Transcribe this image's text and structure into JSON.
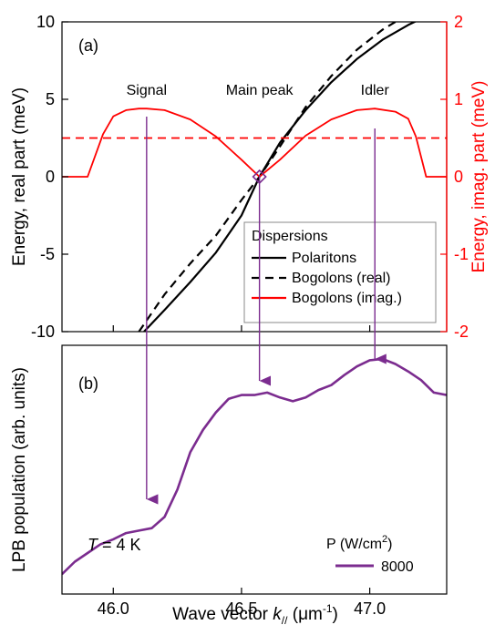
{
  "chart_data": [
    {
      "panel": "(a)",
      "type": "line",
      "xlim": [
        45.8,
        47.3
      ],
      "ylim": [
        -10,
        10
      ],
      "y2lim": [
        -2,
        2
      ],
      "ylabel": "Energy, real part (meV)",
      "y2label": "Energy, imag. part (meV)",
      "yticks": [
        -10,
        -5,
        0,
        5,
        10
      ],
      "y2ticks": [
        -2,
        -1,
        0,
        1,
        2
      ],
      "annotations": [
        "Signal",
        "Main peak",
        "Idler"
      ],
      "legend": {
        "title": "Dispersions",
        "placement": "bottom-right",
        "entries": [
          "Polaritons",
          "Bogolons (real)",
          "Bogolons (imag.)"
        ]
      },
      "series": [
        {
          "name": "Polaritons",
          "axis": "left",
          "color": "#000000",
          "style": "solid",
          "x": [
            46.12,
            46.2,
            46.3,
            46.4,
            46.5,
            46.57,
            46.65,
            46.75,
            46.85,
            46.95,
            47.05,
            47.15,
            47.2
          ],
          "y": [
            -10,
            -8.6,
            -6.8,
            -4.9,
            -2.5,
            0,
            2.2,
            4.3,
            6.1,
            7.6,
            8.85,
            9.8,
            10.2
          ]
        },
        {
          "name": "Bogolons (real)",
          "axis": "left",
          "color": "#000000",
          "style": "dashed",
          "x": [
            46.1,
            46.2,
            46.3,
            46.4,
            46.5,
            46.57,
            46.65,
            46.75,
            46.85,
            46.95,
            47.05,
            47.12
          ],
          "y": [
            -10,
            -7.6,
            -5.6,
            -3.8,
            -1.5,
            0,
            1.95,
            4.5,
            6.5,
            8.2,
            9.5,
            10.2
          ]
        },
        {
          "name": "Bogolons (imag.)",
          "axis": "right",
          "color": "#ff0000",
          "style": "solid",
          "x": [
            45.8,
            45.9,
            45.96,
            46.0,
            46.05,
            46.1,
            46.13,
            46.2,
            46.3,
            46.4,
            46.5,
            46.57,
            46.65,
            46.75,
            46.85,
            46.95,
            47.02,
            47.1,
            47.15,
            47.18,
            47.22,
            47.3
          ],
          "y": [
            0,
            0,
            0.55,
            0.78,
            0.86,
            0.88,
            0.88,
            0.86,
            0.74,
            0.52,
            0.22,
            0,
            0.22,
            0.53,
            0.74,
            0.86,
            0.88,
            0.84,
            0.75,
            0.52,
            0,
            0
          ]
        },
        {
          "name": "threshold",
          "axis": "right",
          "color": "#ff0000",
          "style": "dashed",
          "x": [
            45.8,
            47.3
          ],
          "y": [
            0.5,
            0.5
          ]
        }
      ],
      "marker": {
        "x": 46.57,
        "y": 0,
        "shape": "diamond",
        "color": "#7b2c8f"
      }
    },
    {
      "panel": "(b)",
      "type": "line",
      "xlim": [
        45.8,
        47.3
      ],
      "ylim": [
        0,
        1
      ],
      "xticks": [
        46.0,
        46.5,
        47.0
      ],
      "xlabel_pre": "Wave vector ",
      "xlabel_var": "k",
      "xlabel_sub": "//",
      "xlabel_post": " (μm",
      "xlabel_sup": "-1",
      "xlabel_end": ")",
      "ylabel": "LPB population (arb. units)",
      "temperature_var": "T",
      "temperature_text": " = 4 K",
      "legend": {
        "title_pre": "P (W/cm",
        "title_sup": "2",
        "title_post": ")",
        "placement": "bottom-right",
        "entries": [
          "8000"
        ]
      },
      "series": [
        {
          "name": "8000",
          "color": "#7b2c8f",
          "x": [
            45.8,
            45.85,
            45.9,
            45.95,
            46.0,
            46.05,
            46.1,
            46.15,
            46.2,
            46.25,
            46.3,
            46.35,
            46.4,
            46.45,
            46.5,
            46.55,
            46.6,
            46.65,
            46.7,
            46.75,
            46.8,
            46.85,
            46.9,
            46.95,
            47.0,
            47.05,
            47.1,
            47.15,
            47.2,
            47.25,
            47.3
          ],
          "y": [
            0.08,
            0.13,
            0.165,
            0.2,
            0.22,
            0.245,
            0.255,
            0.265,
            0.31,
            0.42,
            0.57,
            0.66,
            0.73,
            0.785,
            0.8,
            0.8,
            0.81,
            0.79,
            0.775,
            0.79,
            0.82,
            0.84,
            0.88,
            0.915,
            0.94,
            0.945,
            0.925,
            0.895,
            0.86,
            0.81,
            0.8
          ]
        }
      ]
    }
  ]
}
